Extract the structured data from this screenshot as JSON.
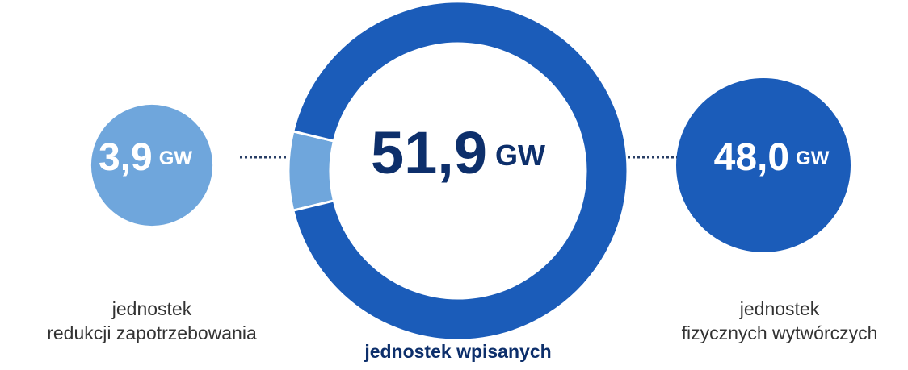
{
  "chart_data": {
    "type": "donut",
    "categories": [
      [
        "jednostek",
        "redukcji zapotrzebowania"
      ],
      [
        "jednostek",
        "fizycznych wytwórczych"
      ]
    ],
    "values": [
      3.9,
      48.0
    ],
    "value_labels": [
      "3,9",
      "48,0"
    ],
    "unit": "GW",
    "colors": [
      "#6fa6dc",
      "#1b5cb9"
    ],
    "total": 51.9,
    "total_label": "51,9",
    "total_caption": "jednostek wpisanych"
  }
}
